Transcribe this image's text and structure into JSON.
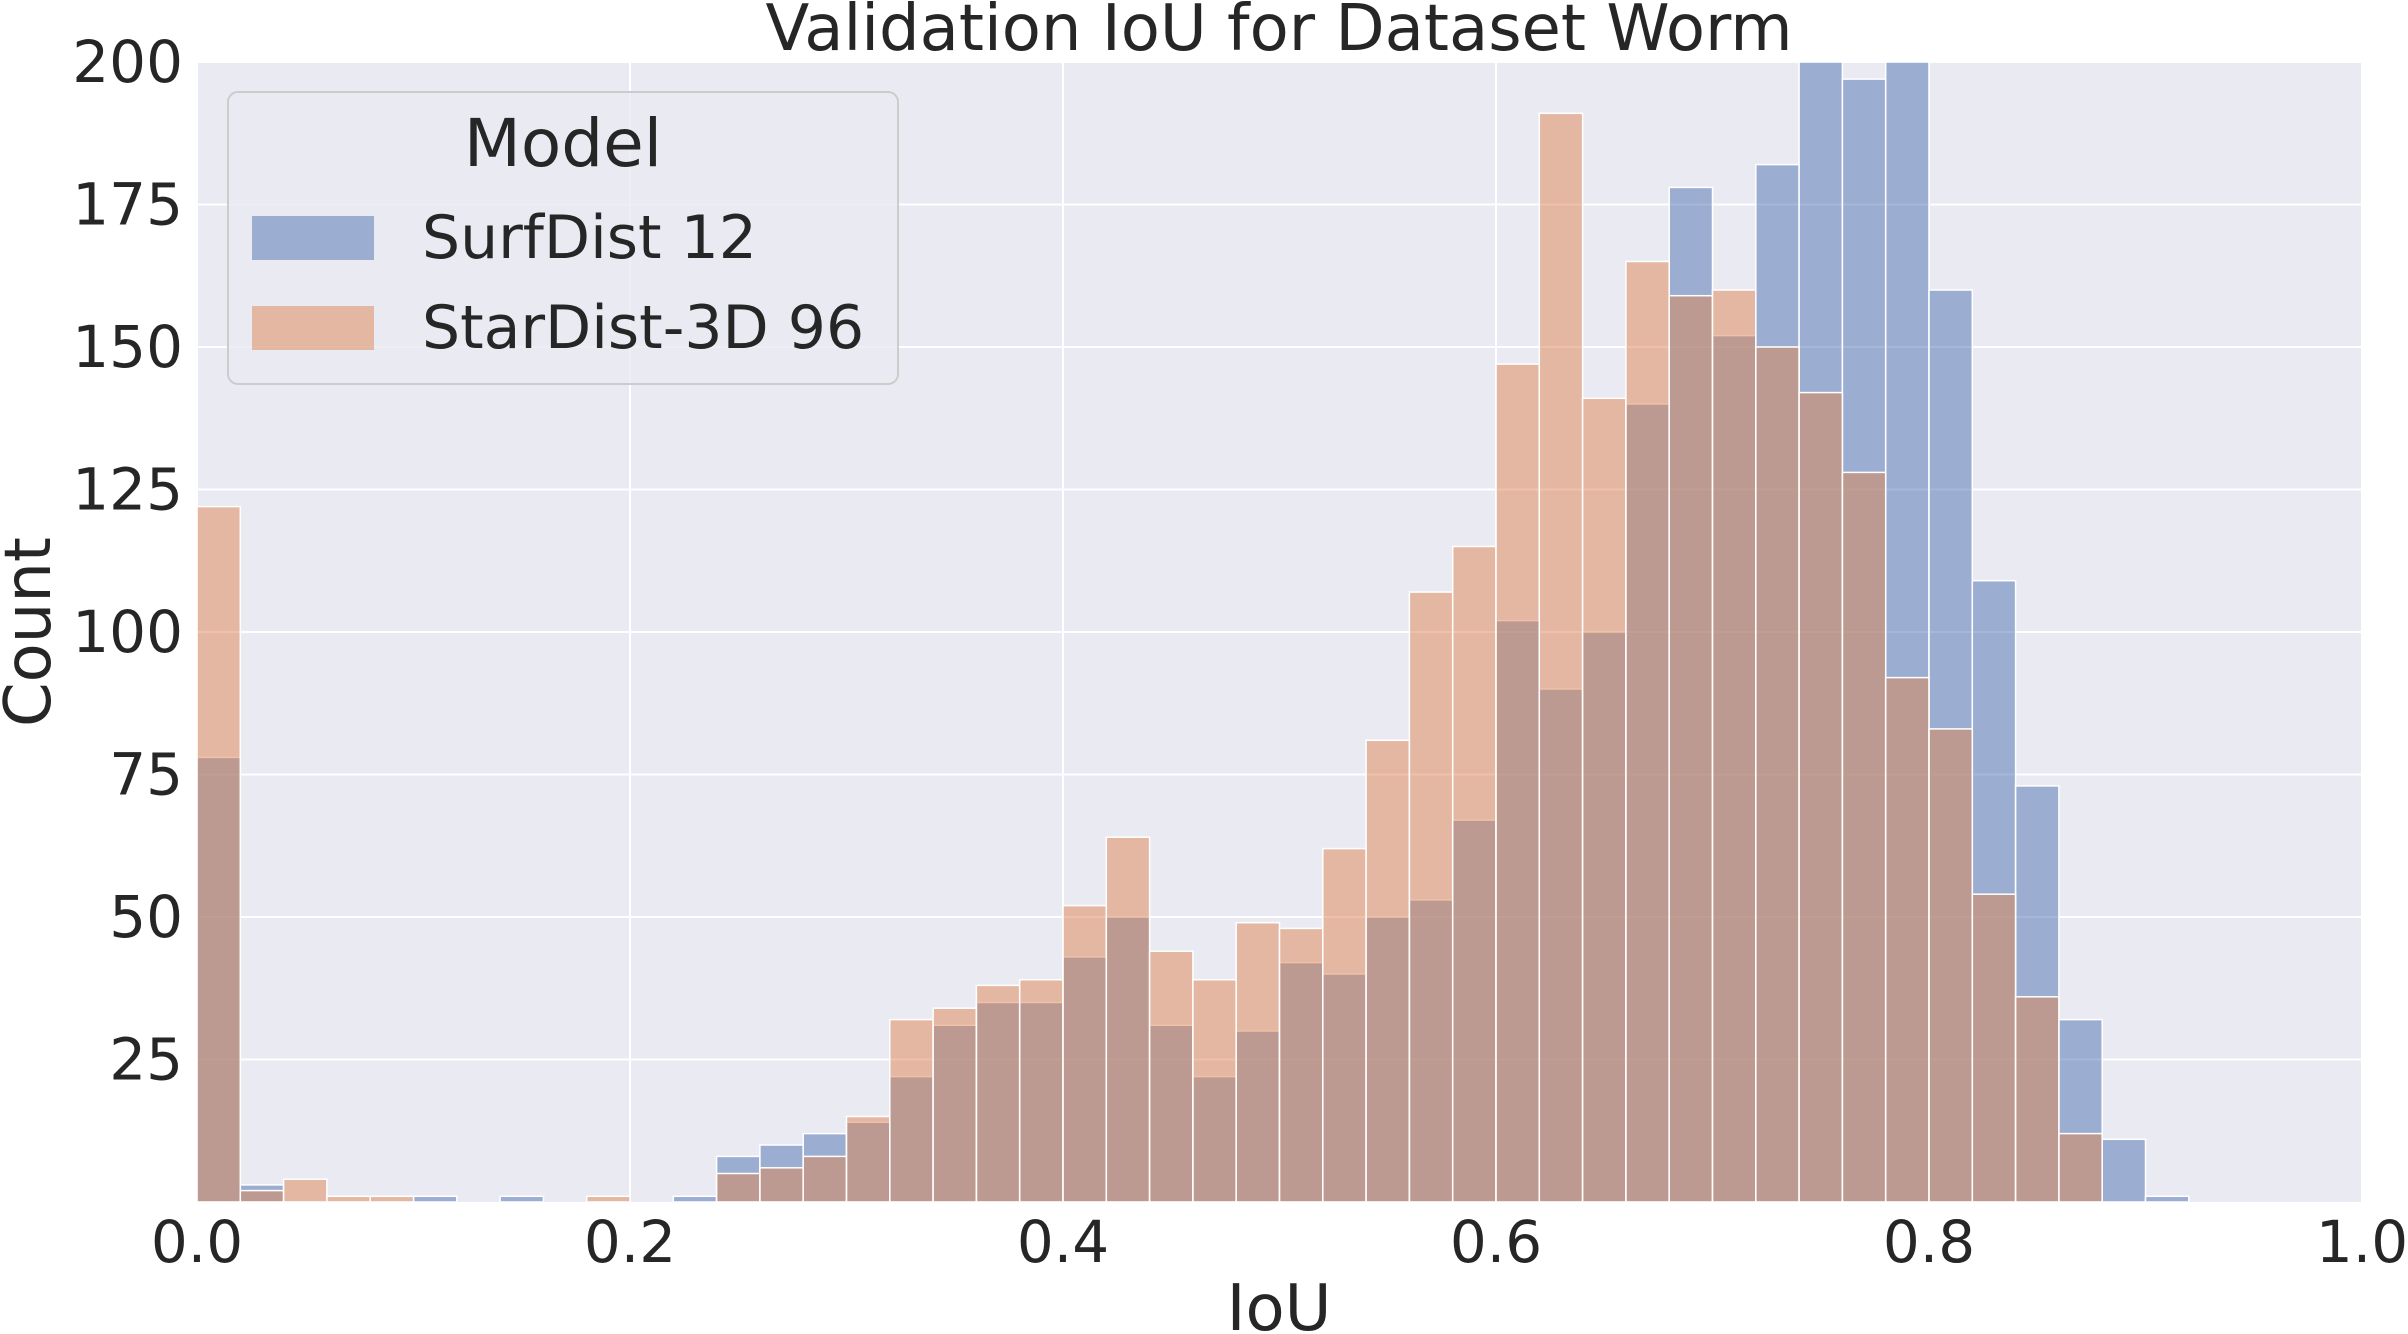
{
  "chart_data": {
    "type": "bar",
    "title": "Validation IoU for Dataset Worm",
    "xlabel": "IoU",
    "ylabel": "Count",
    "xlim": [
      0.0,
      1.0
    ],
    "ylim": [
      0,
      200
    ],
    "xticks": [
      "0.0",
      "0.2",
      "0.4",
      "0.6",
      "0.8",
      "1.0"
    ],
    "xtick_values": [
      0.0,
      0.2,
      0.4,
      0.6,
      0.8,
      1.0
    ],
    "yticks": [
      "25",
      "50",
      "75",
      "100",
      "125",
      "150",
      "175",
      "200"
    ],
    "ytick_values": [
      25,
      50,
      75,
      100,
      125,
      150,
      175,
      200
    ],
    "grid": true,
    "legend": {
      "title": "Model",
      "placement": "top-left",
      "entries": [
        "SurfDist 12",
        "StarDist-3D 96"
      ]
    },
    "bin_width": 0.02,
    "bin_starts": [
      0.0,
      0.02,
      0.04,
      0.06,
      0.08,
      0.1,
      0.12,
      0.14,
      0.16,
      0.18,
      0.2,
      0.22,
      0.24,
      0.26,
      0.28,
      0.3,
      0.32,
      0.34,
      0.36,
      0.38,
      0.4,
      0.42,
      0.44,
      0.46,
      0.48,
      0.5,
      0.52,
      0.54,
      0.56,
      0.58,
      0.6,
      0.62,
      0.64,
      0.66,
      0.68,
      0.7,
      0.72,
      0.74,
      0.76,
      0.78,
      0.8,
      0.82,
      0.84,
      0.86,
      0.88,
      0.9,
      0.92,
      0.94,
      0.96,
      0.98
    ],
    "series": [
      {
        "name": "SurfDist 12",
        "color": "#4c72b0",
        "values": [
          78,
          3,
          0,
          0,
          0,
          1,
          0,
          1,
          0,
          0,
          0,
          1,
          8,
          10,
          12,
          14,
          22,
          31,
          35,
          35,
          43,
          50,
          31,
          22,
          30,
          42,
          40,
          50,
          53,
          67,
          102,
          90,
          100,
          140,
          178,
          152,
          182,
          200,
          197,
          200,
          160,
          109,
          73,
          32,
          11,
          1,
          0,
          0,
          0,
          0
        ]
      },
      {
        "name": "StarDist-3D 96",
        "color": "#dd8452",
        "values": [
          122,
          2,
          4,
          1,
          1,
          0,
          0,
          0,
          0,
          1,
          0,
          0,
          5,
          6,
          8,
          15,
          32,
          34,
          38,
          39,
          52,
          64,
          44,
          39,
          49,
          48,
          62,
          81,
          107,
          115,
          147,
          191,
          141,
          165,
          159,
          160,
          150,
          142,
          128,
          92,
          83,
          54,
          36,
          12,
          0,
          0,
          0,
          0,
          0,
          0
        ]
      }
    ]
  }
}
